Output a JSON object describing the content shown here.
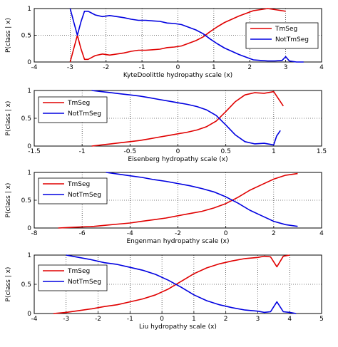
{
  "colors": {
    "tmseg": "#e00000",
    "nottmseg": "#0000e0",
    "grid": "#000000",
    "axes": "#000000"
  },
  "chart_data": [
    {
      "type": "line",
      "xlabel": "KyteDoolittle hydropathy scale (x)",
      "ylabel": "P(class | x)",
      "xlim": [
        -4,
        4
      ],
      "ylim": [
        0,
        1
      ],
      "xticks": [
        "-4",
        "-3",
        "-2",
        "-1",
        "0",
        "1",
        "2",
        "3",
        "4"
      ],
      "yticks": [
        "0",
        "0.5",
        "1"
      ],
      "grid": true,
      "legend": "right",
      "series": [
        {
          "name": "TmSeg",
          "color": "#e00000",
          "x": [
            -3.0,
            -2.9,
            -2.8,
            -2.7,
            -2.6,
            -2.5,
            -2.3,
            -2.1,
            -1.9,
            -1.7,
            -1.5,
            -1.3,
            -1.1,
            -0.9,
            -0.7,
            -0.5,
            -0.3,
            -0.1,
            0.1,
            0.3,
            0.5,
            0.7,
            0.9,
            1.1,
            1.3,
            1.5,
            1.7,
            1.9,
            2.1,
            2.3,
            2.5,
            2.7,
            2.9,
            3.0
          ],
          "y": [
            0.0,
            0.25,
            0.5,
            0.25,
            0.05,
            0.05,
            0.12,
            0.15,
            0.13,
            0.15,
            0.17,
            0.2,
            0.22,
            0.22,
            0.23,
            0.24,
            0.27,
            0.28,
            0.3,
            0.35,
            0.4,
            0.47,
            0.57,
            0.66,
            0.74,
            0.8,
            0.86,
            0.91,
            0.96,
            0.98,
            1.0,
            0.98,
            0.96,
            0.95
          ]
        },
        {
          "name": "NotTmSeg",
          "color": "#0000e0",
          "x": [
            -3.0,
            -2.9,
            -2.8,
            -2.7,
            -2.6,
            -2.5,
            -2.3,
            -2.1,
            -1.9,
            -1.7,
            -1.5,
            -1.3,
            -1.1,
            -0.9,
            -0.7,
            -0.5,
            -0.3,
            -0.1,
            0.1,
            0.3,
            0.5,
            0.7,
            0.9,
            1.1,
            1.3,
            1.5,
            1.7,
            1.9,
            2.1,
            2.3,
            2.5,
            2.7,
            2.9,
            3.0,
            3.1,
            3.3,
            3.5
          ],
          "y": [
            1.0,
            0.75,
            0.5,
            0.75,
            0.95,
            0.95,
            0.88,
            0.85,
            0.87,
            0.85,
            0.83,
            0.8,
            0.78,
            0.78,
            0.77,
            0.76,
            0.73,
            0.72,
            0.7,
            0.65,
            0.6,
            0.53,
            0.43,
            0.34,
            0.26,
            0.2,
            0.14,
            0.09,
            0.04,
            0.03,
            0.02,
            0.02,
            0.03,
            0.1,
            0.02,
            0.0,
            0.0
          ]
        }
      ]
    },
    {
      "type": "line",
      "xlabel": "Eisenberg hydropathy scale (x)",
      "ylabel": "P(class | x)",
      "xlim": [
        -1.5,
        1.5
      ],
      "ylim": [
        0,
        1
      ],
      "xticks": [
        "-1.5",
        "-1",
        "-0.5",
        "0",
        "0.5",
        "1",
        "1.5"
      ],
      "yticks": [
        "0",
        "0.5",
        "1"
      ],
      "grid": true,
      "legend": "left",
      "series": [
        {
          "name": "TmSeg",
          "color": "#e00000",
          "x": [
            -0.9,
            -0.8,
            -0.7,
            -0.6,
            -0.5,
            -0.4,
            -0.3,
            -0.2,
            -0.1,
            0.0,
            0.1,
            0.2,
            0.3,
            0.4,
            0.5,
            0.6,
            0.7,
            0.8,
            0.9,
            1.0,
            1.1
          ],
          "y": [
            0.0,
            0.02,
            0.04,
            0.06,
            0.08,
            0.1,
            0.13,
            0.16,
            0.19,
            0.22,
            0.25,
            0.29,
            0.35,
            0.45,
            0.62,
            0.8,
            0.92,
            0.96,
            0.95,
            0.98,
            0.72
          ]
        },
        {
          "name": "NotTmSeg",
          "color": "#0000e0",
          "x": [
            -0.9,
            -0.8,
            -0.7,
            -0.6,
            -0.5,
            -0.4,
            -0.3,
            -0.2,
            -0.1,
            0.0,
            0.1,
            0.2,
            0.3,
            0.4,
            0.5,
            0.6,
            0.7,
            0.8,
            0.9,
            1.0,
            1.03,
            1.07
          ],
          "y": [
            1.0,
            0.98,
            0.96,
            0.94,
            0.92,
            0.9,
            0.87,
            0.84,
            0.81,
            0.78,
            0.75,
            0.71,
            0.65,
            0.55,
            0.38,
            0.2,
            0.08,
            0.04,
            0.05,
            0.02,
            0.18,
            0.28
          ]
        }
      ]
    },
    {
      "type": "line",
      "xlabel": "Engenman hydropathy scale (x)",
      "ylabel": "P(class | x)",
      "xlim": [
        -8,
        4
      ],
      "ylim": [
        0,
        1
      ],
      "xticks": [
        "-8",
        "-6",
        "-4",
        "-2",
        "0",
        "2",
        "4"
      ],
      "yticks": [
        "0",
        "0.5",
        "1"
      ],
      "grid": true,
      "legend": "left",
      "series": [
        {
          "name": "TmSeg",
          "color": "#e00000",
          "x": [
            -7.0,
            -6.5,
            -6.0,
            -5.5,
            -5.0,
            -4.5,
            -4.0,
            -3.5,
            -3.0,
            -2.5,
            -2.0,
            -1.5,
            -1.0,
            -0.5,
            0.0,
            0.5,
            1.0,
            1.5,
            2.0,
            2.5,
            3.0
          ],
          "y": [
            0.0,
            0.01,
            0.02,
            0.03,
            0.05,
            0.07,
            0.09,
            0.12,
            0.15,
            0.18,
            0.22,
            0.26,
            0.3,
            0.36,
            0.44,
            0.55,
            0.68,
            0.78,
            0.88,
            0.95,
            0.98
          ]
        },
        {
          "name": "NotTmSeg",
          "color": "#0000e0",
          "x": [
            -5.0,
            -4.5,
            -4.0,
            -3.5,
            -3.0,
            -2.5,
            -2.0,
            -1.5,
            -1.0,
            -0.5,
            0.0,
            0.5,
            1.0,
            1.5,
            2.0,
            2.5,
            3.0
          ],
          "y": [
            1.0,
            0.97,
            0.94,
            0.91,
            0.87,
            0.84,
            0.8,
            0.76,
            0.71,
            0.65,
            0.56,
            0.45,
            0.32,
            0.22,
            0.12,
            0.06,
            0.03
          ]
        }
      ]
    },
    {
      "type": "line",
      "xlabel": "Liu hydropathy scale (x)",
      "ylabel": "P(class | x)",
      "xlim": [
        -4,
        5
      ],
      "ylim": [
        0,
        1
      ],
      "xticks": [
        "-4",
        "-3",
        "-2",
        "-1",
        "0",
        "1",
        "2",
        "3",
        "4",
        "5"
      ],
      "yticks": [
        "0",
        "0.5",
        "1"
      ],
      "grid": true,
      "legend": "left",
      "series": [
        {
          "name": "TmSeg",
          "color": "#e00000",
          "x": [
            -3.4,
            -3.0,
            -2.6,
            -2.2,
            -1.8,
            -1.4,
            -1.0,
            -0.6,
            -0.2,
            0.2,
            0.6,
            1.0,
            1.4,
            1.8,
            2.2,
            2.6,
            3.0,
            3.2,
            3.4,
            3.6,
            3.8,
            4.0
          ],
          "y": [
            0.0,
            0.02,
            0.05,
            0.08,
            0.12,
            0.15,
            0.2,
            0.25,
            0.32,
            0.42,
            0.55,
            0.68,
            0.78,
            0.85,
            0.9,
            0.94,
            0.96,
            0.98,
            0.97,
            0.8,
            0.98,
            1.0
          ]
        },
        {
          "name": "NotTmSeg",
          "color": "#0000e0",
          "x": [
            -3.0,
            -2.6,
            -2.2,
            -1.8,
            -1.4,
            -1.0,
            -0.6,
            -0.2,
            0.2,
            0.6,
            1.0,
            1.4,
            1.8,
            2.2,
            2.6,
            3.0,
            3.2,
            3.4,
            3.6,
            3.8,
            4.0,
            4.2
          ],
          "y": [
            1.0,
            0.96,
            0.92,
            0.87,
            0.84,
            0.79,
            0.74,
            0.67,
            0.57,
            0.45,
            0.32,
            0.22,
            0.15,
            0.1,
            0.06,
            0.04,
            0.02,
            0.03,
            0.2,
            0.03,
            0.02,
            0.0
          ]
        }
      ]
    }
  ]
}
